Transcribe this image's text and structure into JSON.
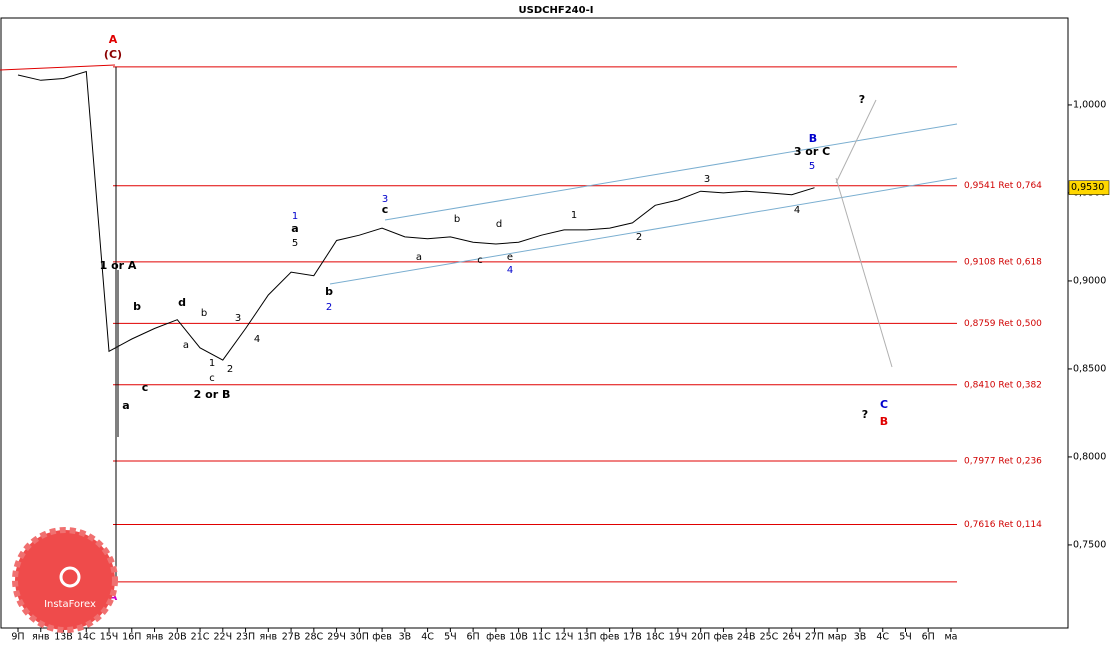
{
  "chart_data": {
    "type": "line",
    "title": "USDCHF240-I",
    "categories": [
      "9П",
      "янв",
      "13В",
      "14С",
      "15Ч",
      "16П",
      "янв",
      "20В",
      "21С",
      "22Ч",
      "23П",
      "янв",
      "27В",
      "28С",
      "29Ч",
      "30П",
      "фев",
      "3В",
      "4С",
      "5Ч",
      "6П",
      "фев",
      "10В",
      "11С",
      "12Ч",
      "13П",
      "фев",
      "17В",
      "18С",
      "19Ч",
      "20П",
      "фев",
      "24В",
      "25С",
      "26Ч",
      "27П",
      "мар",
      "3В",
      "4С",
      "5Ч",
      "6П",
      "ма"
    ],
    "series": [
      {
        "name": "USDCHF",
        "color": "#000000",
        "values": [
          1.017,
          1.014,
          1.015,
          1.019,
          0.86,
          0.867,
          0.873,
          0.878,
          0.862,
          0.855,
          0.873,
          0.892,
          0.905,
          0.903,
          0.923,
          0.926,
          0.93,
          0.925,
          0.924,
          0.925,
          0.922,
          0.921,
          0.922,
          0.926,
          0.929,
          0.929,
          0.93,
          0.933,
          0.943,
          0.946,
          0.951,
          0.95,
          0.951,
          0.95,
          0.949,
          0.953,
          null,
          null,
          null,
          null,
          null,
          null
        ]
      }
    ],
    "ylim": [
      0.7028,
      1.0494
    ],
    "yticks": [
      {
        "value": 1.0,
        "label": "1,0000"
      },
      {
        "value": 0.95,
        "label": "0,9500"
      },
      {
        "value": 0.9,
        "label": "0,9000"
      },
      {
        "value": 0.85,
        "label": "0,8500"
      },
      {
        "value": 0.8,
        "label": "0,8000"
      },
      {
        "value": 0.75,
        "label": "0,7500"
      }
    ],
    "current_price": {
      "value": 0.953,
      "label": "0,9530"
    },
    "levels": [
      {
        "value": 1.0216
      },
      {
        "value": 0.9541,
        "label": "0,9541 Ret 0,764"
      },
      {
        "value": 0.9108,
        "label": "0,9108 Ret 0,618"
      },
      {
        "value": 0.8759,
        "label": "0,8759 Ret 0,500"
      },
      {
        "value": 0.841,
        "label": "0,8410 Ret 0,382"
      },
      {
        "value": 0.7977,
        "label": "0,7977 Ret 0,236"
      },
      {
        "value": 0.7616,
        "label": "0,7616 Ret 0,114"
      },
      {
        "value": 0.729
      }
    ],
    "level_color": "#e00000",
    "annotations": [
      {
        "text": "A",
        "color": "#e00000"
      },
      {
        "text": "(C)",
        "color": "#8b0000"
      },
      {
        "text": "1 or A",
        "color": "#000000"
      },
      {
        "text": "b",
        "color": "#000000"
      },
      {
        "text": "d",
        "color": "#000000"
      },
      {
        "text": "b",
        "color": "#000000"
      },
      {
        "text": "a",
        "color": "#000000"
      },
      {
        "text": "1",
        "color": "#000000"
      },
      {
        "text": "c",
        "color": "#000000"
      },
      {
        "text": "2",
        "color": "#000000"
      },
      {
        "text": "3",
        "color": "#000000"
      },
      {
        "text": "4",
        "color": "#000000"
      },
      {
        "text": "c",
        "color": "#000000"
      },
      {
        "text": "a",
        "color": "#000000"
      },
      {
        "text": "2 or B",
        "color": "#000000"
      },
      {
        "text": "1",
        "color": "#0000cc"
      },
      {
        "text": "a",
        "color": "#000000"
      },
      {
        "text": "5",
        "color": "#000000"
      },
      {
        "text": "b",
        "color": "#000000"
      },
      {
        "text": "2",
        "color": "#0000cc"
      },
      {
        "text": "3",
        "color": "#0000cc"
      },
      {
        "text": "c",
        "color": "#000000"
      },
      {
        "text": "b",
        "color": "#000000"
      },
      {
        "text": "d",
        "color": "#000000"
      },
      {
        "text": "a",
        "color": "#000000"
      },
      {
        "text": "c",
        "color": "#000000"
      },
      {
        "text": "e",
        "color": "#000000"
      },
      {
        "text": "4",
        "color": "#0000cc"
      },
      {
        "text": "1",
        "color": "#000000"
      },
      {
        "text": "2",
        "color": "#000000"
      },
      {
        "text": "3",
        "color": "#000000"
      },
      {
        "text": "4",
        "color": "#000000"
      },
      {
        "text": "B",
        "color": "#0000cc"
      },
      {
        "text": "3 or C",
        "color": "#000000"
      },
      {
        "text": "5",
        "color": "#0000cc"
      },
      {
        "text": "?",
        "color": "#000000"
      },
      {
        "text": "?",
        "color": "#000000"
      },
      {
        "text": "C",
        "color": "#0000cc"
      },
      {
        "text": "B",
        "color": "#e00000"
      },
      {
        "text": "A",
        "color": "#cc00cc"
      }
    ],
    "logo": "InstaForex"
  }
}
